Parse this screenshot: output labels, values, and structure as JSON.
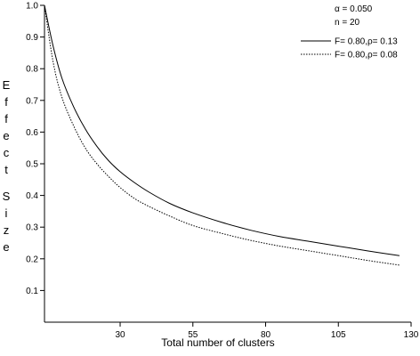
{
  "chart_data": {
    "type": "line",
    "xlabel": "Total number of clusters",
    "ylabel": "Effect Size",
    "xlim": [
      4,
      130
    ],
    "ylim": [
      0,
      1.0
    ],
    "xticks": [
      30,
      55,
      80,
      105,
      130
    ],
    "yticks": [
      0.1,
      0.2,
      0.3,
      0.4,
      0.5,
      0.6,
      0.7,
      0.8,
      0.9,
      1.0
    ],
    "annotations": [
      "α = 0.050",
      "n = 20"
    ],
    "legend_position": "top-right",
    "series": [
      {
        "name": "F= 0.80,ρ= 0.13",
        "style": "solid",
        "color": "#000000",
        "x": [
          4,
          7,
          10,
          14,
          18,
          22,
          26,
          30,
          35,
          40,
          47,
          55,
          65,
          75,
          85,
          95,
          105,
          115,
          126
        ],
        "y": [
          1.0,
          0.87,
          0.77,
          0.68,
          0.61,
          0.555,
          0.51,
          0.475,
          0.44,
          0.41,
          0.375,
          0.345,
          0.315,
          0.29,
          0.27,
          0.255,
          0.24,
          0.225,
          0.21
        ]
      },
      {
        "name": "F= 0.80,ρ= 0.08",
        "style": "dotted",
        "color": "#000000",
        "x": [
          4,
          7,
          10,
          14,
          18,
          22,
          26,
          30,
          35,
          40,
          47,
          55,
          65,
          75,
          85,
          95,
          105,
          115,
          126
        ],
        "y": [
          1.0,
          0.82,
          0.71,
          0.62,
          0.55,
          0.5,
          0.46,
          0.425,
          0.39,
          0.365,
          0.335,
          0.305,
          0.28,
          0.258,
          0.24,
          0.225,
          0.21,
          0.195,
          0.18
        ]
      }
    ]
  }
}
